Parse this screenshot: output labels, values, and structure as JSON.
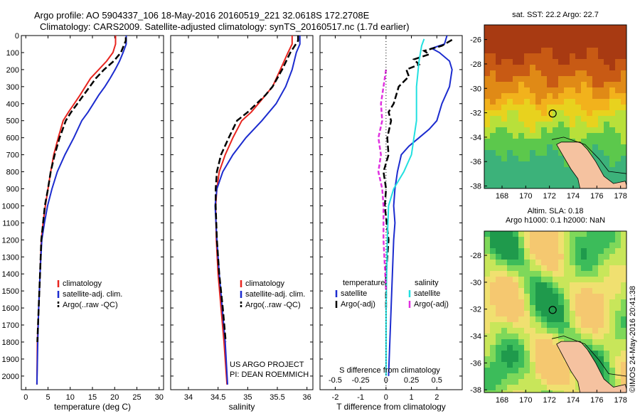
{
  "header": {
    "line1": "Argo profile: AO 5904337_106 18-May-2016 20160519_221 32.0618S 172.2708E",
    "line2": "Climatology: CARS2009. Satellite-adjusted climatology: synTS_20160517.nc (1.7d earlier)"
  },
  "side_note": "©IMOS 24-May-2016 20:41:38",
  "project_note": {
    "line1": "US ARGO PROJECT",
    "line2": "PI: DEAN ROEMMICH"
  },
  "colors": {
    "climatology": "#e8251f",
    "satellite": "#1c2ccf",
    "argo": "#000000",
    "salinity_sat": "#22e0e0",
    "salinity_argo": "#e030e0",
    "land": "#f5c2a0"
  },
  "chart_data": [
    {
      "id": "temperature",
      "type": "line",
      "xlabel": "temperature (deg C)",
      "xlim": [
        -1,
        31
      ],
      "ylim": [
        2080,
        0
      ],
      "xticks": [
        0,
        5,
        10,
        15,
        20,
        25,
        30
      ],
      "yticks": [
        0,
        100,
        200,
        300,
        400,
        500,
        600,
        700,
        800,
        900,
        1000,
        1100,
        1200,
        1300,
        1400,
        1500,
        1600,
        1700,
        1800,
        1900,
        2000
      ],
      "legend": [
        "climatology",
        "satellite-adj. clim.",
        "Argo(..raw -QC)"
      ],
      "series": [
        {
          "name": "climatology",
          "x": [
            20.2,
            20.2,
            19.6,
            18.2,
            16.4,
            14.6,
            13.4,
            12.2,
            10.9,
            9.6,
            8.4,
            7.3,
            6.3,
            5.6,
            5.0,
            4.4,
            3.9,
            3.5,
            3.2,
            2.9,
            2.6,
            2.5
          ],
          "y": [
            0,
            50,
            100,
            150,
            200,
            250,
            300,
            350,
            400,
            450,
            500,
            600,
            700,
            800,
            900,
            1000,
            1100,
            1200,
            1400,
            1600,
            1800,
            2050
          ]
        },
        {
          "name": "satellite-adj. clim.",
          "x": [
            22.6,
            22.6,
            21.9,
            21.1,
            20.1,
            19.0,
            17.8,
            16.4,
            15.2,
            14.0,
            12.6,
            10.8,
            8.8,
            7.1,
            5.9,
            4.9,
            4.2,
            3.6,
            3.2,
            2.9,
            2.7,
            2.5
          ],
          "y": [
            0,
            50,
            100,
            150,
            200,
            250,
            300,
            350,
            400,
            450,
            500,
            600,
            700,
            800,
            900,
            1000,
            1100,
            1200,
            1400,
            1600,
            1800,
            2050
          ]
        },
        {
          "name": "Argo(..raw -QC)",
          "x": [
            22.5,
            22.5,
            21.4,
            19.8,
            17.6,
            15.8,
            14.4,
            13.0,
            11.6,
            10.2,
            9.0,
            7.6,
            6.5,
            5.6,
            5.0,
            4.3,
            3.9,
            3.5,
            3.2,
            2.9,
            2.6
          ],
          "y": [
            10,
            30,
            100,
            150,
            200,
            250,
            300,
            350,
            400,
            450,
            500,
            600,
            700,
            800,
            900,
            1000,
            1100,
            1200,
            1400,
            1600,
            1800
          ]
        }
      ]
    },
    {
      "id": "salinity",
      "type": "line",
      "xlabel": "salinity",
      "xlim": [
        33.7,
        36.1
      ],
      "ylim": [
        2080,
        0
      ],
      "xticks": [
        34,
        34.5,
        35,
        35.5,
        36
      ],
      "legend": [
        "climatology",
        "satellite-adj. clim.",
        "Argo(..raw -QC)"
      ],
      "series": [
        {
          "name": "climatology",
          "x": [
            35.75,
            35.75,
            35.68,
            35.55,
            35.42,
            35.3,
            35.18,
            35.06,
            34.9,
            34.75,
            34.62,
            34.52,
            34.48,
            34.46,
            34.47,
            34.5,
            34.55,
            34.6,
            34.65
          ],
          "y": [
            0,
            50,
            100,
            200,
            300,
            350,
            400,
            450,
            500,
            600,
            700,
            800,
            900,
            1000,
            1200,
            1400,
            1600,
            1800,
            2050
          ]
        },
        {
          "name": "satellite-adj. clim.",
          "x": [
            35.88,
            35.88,
            35.82,
            35.75,
            35.64,
            35.48,
            35.24,
            34.97,
            34.75,
            34.58,
            34.48,
            34.45,
            34.48,
            34.52,
            34.57,
            34.62,
            34.66
          ],
          "y": [
            0,
            50,
            100,
            200,
            300,
            400,
            500,
            600,
            700,
            800,
            900,
            1000,
            1200,
            1400,
            1600,
            1800,
            2050
          ]
        },
        {
          "name": "Argo(..raw -QC)",
          "x": [
            35.85,
            35.85,
            35.72,
            35.58,
            35.42,
            35.3,
            35.15,
            35.0,
            34.82,
            34.68,
            34.55,
            34.48,
            34.46,
            34.46,
            34.48,
            34.52,
            34.58,
            34.63
          ],
          "y": [
            0,
            30,
            100,
            200,
            300,
            350,
            400,
            450,
            500,
            600,
            700,
            800,
            900,
            1000,
            1200,
            1400,
            1600,
            1800
          ]
        }
      ]
    },
    {
      "id": "difference",
      "type": "line",
      "xlabel": "T difference from climatology",
      "xlabel_top": "S difference from climatology",
      "xlim": [
        -2.6,
        3.0
      ],
      "ylim": [
        2080,
        0
      ],
      "xticks_T": [
        -2,
        -1,
        0,
        1,
        2
      ],
      "xticks_S": [
        "-0.5",
        "-0.25",
        "0",
        "0.25",
        "0.5"
      ],
      "xticks_S_values": [
        -0.5,
        -0.25,
        0,
        0.25,
        0.5
      ],
      "legend_temperature": {
        "title": "temperature",
        "entries": [
          "satellite",
          "Argo(-adj)"
        ]
      },
      "legend_salinity": {
        "title": "salinity",
        "entries": [
          "satellite",
          "Argo(-adj)"
        ]
      },
      "series": [
        {
          "name": "temperature satellite",
          "x": [
            2.4,
            2.3,
            1.8,
            2.1,
            2.5,
            2.6,
            2.5,
            2.2,
            2.0,
            1.7,
            1.3,
            0.9,
            0.6,
            0.45,
            0.35,
            0.3,
            0.35,
            0.3,
            0.25,
            0.2,
            0.1
          ],
          "y": [
            0,
            50,
            75,
            100,
            150,
            200,
            300,
            400,
            500,
            550,
            600,
            650,
            700,
            800,
            900,
            1000,
            1100,
            1200,
            1400,
            1600,
            2000
          ]
        },
        {
          "name": "temperature Argo(-adj)",
          "x": [
            2.6,
            2.2,
            1.5,
            1.7,
            1.1,
            1.3,
            0.8,
            0.9,
            0.5,
            0.3,
            0.1,
            0.2,
            0.05,
            0.1,
            -0.1,
            0.0,
            -0.05,
            0.1,
            0.0,
            0.0
          ],
          "y": [
            25,
            60,
            90,
            110,
            140,
            170,
            200,
            240,
            300,
            400,
            450,
            500,
            600,
            700,
            800,
            900,
            1000,
            1200,
            1400,
            1600
          ]
        },
        {
          "name": "salinity satellite",
          "x": [
            1.5,
            1.4,
            1.3,
            1.2,
            1.2,
            1.1,
            1.0,
            0.7,
            0.3,
            0.1,
            0.05,
            0.0,
            0.0
          ],
          "y": [
            20,
            60,
            150,
            300,
            500,
            600,
            700,
            800,
            900,
            1000,
            1200,
            1600,
            2000
          ]
        },
        {
          "name": "salinity Argo(-adj)",
          "x": [
            0.0,
            -0.1,
            -0.2,
            -0.15,
            -0.3,
            -0.2,
            -0.3,
            -0.15,
            -0.1,
            -0.1,
            0.0
          ],
          "y": [
            200,
            300,
            400,
            500,
            600,
            700,
            800,
            900,
            1000,
            1200,
            1500
          ]
        }
      ]
    },
    {
      "id": "sst_map",
      "type": "heatmap",
      "title": "sat. SST: 22.2  Argo: 22.7",
      "xticks": [
        168,
        170,
        172,
        174,
        176,
        178
      ],
      "yticks": [
        -26,
        -28,
        -30,
        -32,
        -34,
        -36,
        -38
      ],
      "xlim": [
        166.5,
        178.5
      ],
      "ylim": [
        -38.2,
        -24.8
      ],
      "profile_location": [
        172.27,
        -32.06
      ]
    },
    {
      "id": "sla_map",
      "type": "heatmap",
      "title": "Altim. SLA: 0.18",
      "subtitle": "Argo h1000: 0.1 h2000: NaN",
      "xticks": [
        168,
        170,
        172,
        174,
        176,
        178
      ],
      "yticks": [
        -28,
        -30,
        -32,
        -34,
        -36,
        -38
      ],
      "xlim": [
        166.5,
        178.5
      ],
      "ylim": [
        -38.2,
        -26.2
      ],
      "profile_location": [
        172.27,
        -32.06
      ]
    }
  ]
}
